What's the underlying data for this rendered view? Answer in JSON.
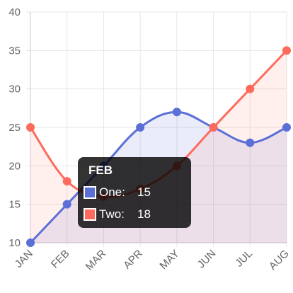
{
  "chart_data": {
    "type": "area",
    "categories": [
      "JAN",
      "FEB",
      "MAR",
      "APR",
      "MAY",
      "JUN",
      "JUL",
      "AUG"
    ],
    "series": [
      {
        "name": "One",
        "values": [
          10,
          15,
          20,
          25,
          27,
          25,
          23,
          25
        ]
      },
      {
        "name": "Two",
        "values": [
          25,
          18,
          16,
          17,
          20,
          25,
          30,
          35
        ]
      }
    ],
    "yticks": [
      10,
      15,
      20,
      25,
      30,
      35,
      40
    ],
    "ylim": [
      10,
      40
    ],
    "grid": true,
    "colors": {
      "One": "#5b6fd6",
      "Two": "#fe6b5c",
      "One_fill": "rgba(90,110,214,0.13)",
      "Two_fill": "rgba(254,107,92,0.10)",
      "grid": "#e6e6e6",
      "axis": "#c9c9c9"
    },
    "tooltip": {
      "title": "FEB",
      "rows": [
        {
          "series": "One:",
          "value": "15"
        },
        {
          "series": "Two:",
          "value": "18"
        }
      ]
    }
  }
}
